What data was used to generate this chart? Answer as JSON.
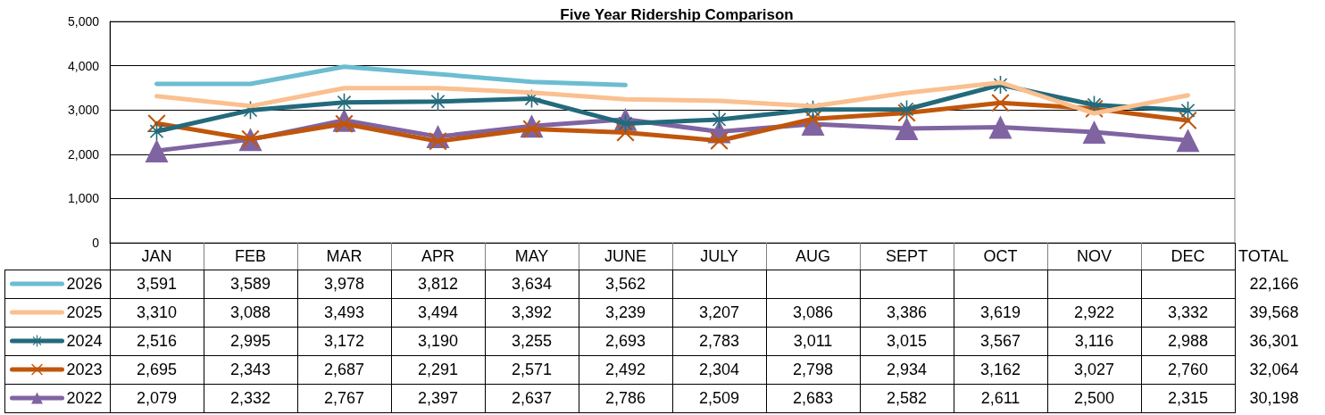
{
  "chart_data": {
    "type": "line",
    "title": "Five Year Ridership Comparison",
    "categories": [
      "JAN",
      "FEB",
      "MAR",
      "APR",
      "MAY",
      "JUNE",
      "JULY",
      "AUG",
      "SEPT",
      "OCT",
      "NOV",
      "DEC"
    ],
    "series": [
      {
        "name": "2026",
        "color": "#6cbdd1",
        "marker": "none",
        "values": [
          3591,
          3589,
          3978,
          3812,
          3634,
          3562,
          null,
          null,
          null,
          null,
          null,
          null
        ],
        "value_labels": [
          "3,591",
          "3,589",
          "3,978",
          "3,812",
          "3,634",
          "3,562",
          null,
          null,
          null,
          null,
          null,
          null
        ]
      },
      {
        "name": "2025",
        "color": "#fac090",
        "marker": "none",
        "values": [
          3310,
          3088,
          3493,
          3494,
          3392,
          3239,
          3207,
          3086,
          3386,
          3619,
          2922,
          3332
        ],
        "value_labels": [
          "3,310",
          "3,088",
          "3,493",
          "3,494",
          "3,392",
          "3,239",
          "3,207",
          "3,086",
          "3,386",
          "3,619",
          "2,922",
          "3,332"
        ]
      },
      {
        "name": "2024",
        "color": "#236a7b",
        "marker": "star",
        "values": [
          2516,
          2995,
          3172,
          3190,
          3255,
          2693,
          2783,
          3011,
          3015,
          3567,
          3116,
          2988
        ],
        "value_labels": [
          "2,516",
          "2,995",
          "3,172",
          "3,190",
          "3,255",
          "2,693",
          "2,783",
          "3,011",
          "3,015",
          "3,567",
          "3,116",
          "2,988"
        ]
      },
      {
        "name": "2023",
        "color": "#c0560b",
        "marker": "cross",
        "values": [
          2695,
          2343,
          2687,
          2291,
          2571,
          2492,
          2304,
          2798,
          2934,
          3162,
          3027,
          2760
        ],
        "value_labels": [
          "2,695",
          "2,343",
          "2,687",
          "2,291",
          "2,571",
          "2,492",
          "2,304",
          "2,798",
          "2,934",
          "3,162",
          "3,027",
          "2,760"
        ]
      },
      {
        "name": "2022",
        "color": "#8064a2",
        "marker": "triangle",
        "values": [
          2079,
          2332,
          2767,
          2397,
          2637,
          2786,
          2509,
          2683,
          2582,
          2611,
          2500,
          2315
        ],
        "value_labels": [
          "2,079",
          "2,332",
          "2,767",
          "2,397",
          "2,637",
          "2,786",
          "2,509",
          "2,683",
          "2,582",
          "2,611",
          "2,500",
          "2,315"
        ]
      }
    ],
    "ylim": [
      0,
      5000
    ],
    "yticks": [
      {
        "value": 0,
        "label": "0"
      },
      {
        "value": 1000,
        "label": "1,000"
      },
      {
        "value": 2000,
        "label": "2,000"
      },
      {
        "value": 3000,
        "label": "3,000"
      },
      {
        "value": 4000,
        "label": "4,000"
      },
      {
        "value": 5000,
        "label": "5,000"
      }
    ],
    "grid": "y",
    "legend": "bottom left",
    "line_style": "solid",
    "totals": [
      "22,166",
      "39,568",
      "36,301",
      "32,064",
      "30,198"
    ],
    "annotations": [
      "TOTAL"
    ]
  }
}
